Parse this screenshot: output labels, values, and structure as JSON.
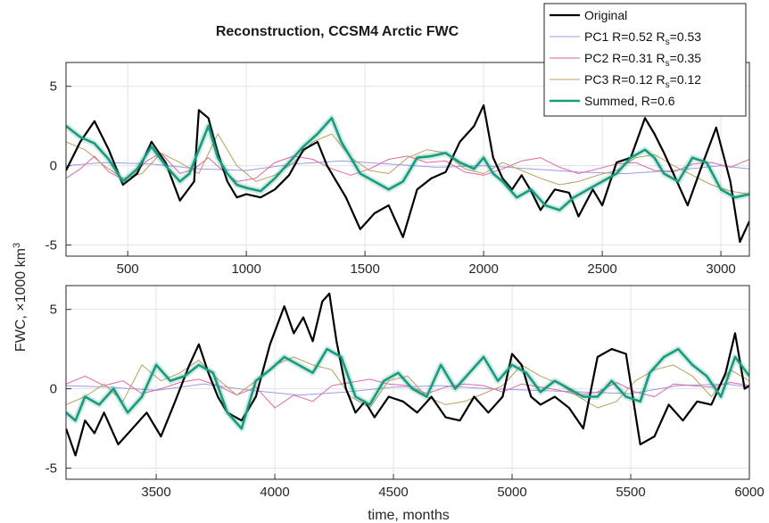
{
  "chart_data": {
    "type": "line",
    "title": "Reconstruction, CCSM4 Arctic FWC",
    "xlabel": "time, months",
    "ylabel": "FWC, ×1000 km",
    "ylabel_superscript": "3",
    "grid": true,
    "legend_placement": "top-right",
    "legend": [
      {
        "series": "original",
        "main": "Original",
        "color": "#000000"
      },
      {
        "series": "pc1",
        "main": "PC1 R=0.52 R",
        "sub": "s",
        "tail": "=0.53",
        "color": "#9b9be6"
      },
      {
        "series": "pc2",
        "main": "PC2 R=0.31 R",
        "sub": "s",
        "tail": "=0.35",
        "color": "#e066a6"
      },
      {
        "series": "pc3",
        "main": "PC3 R=0.12 R",
        "sub": "s",
        "tail": "=0.12",
        "color": "#b8a060"
      },
      {
        "series": "summed",
        "main": "Summed, R=0.6",
        "color": "#1a9a7e"
      }
    ],
    "panels": [
      {
        "name": "top",
        "xlim": [
          240,
          3120
        ],
        "ylim": [
          -5.7,
          6.5
        ],
        "xticks": [
          500,
          1000,
          1500,
          2000,
          2500,
          3000
        ],
        "yticks": [
          -5,
          0,
          5
        ],
        "series": {
          "original": {
            "x": [
              240,
              300,
              360,
              420,
              480,
              540,
              600,
              660,
              720,
              780,
              800,
              840,
              880,
              920,
              960,
              1000,
              1060,
              1120,
              1180,
              1240,
              1300,
              1340,
              1380,
              1420,
              1480,
              1540,
              1600,
              1660,
              1720,
              1780,
              1840,
              1900,
              1960,
              2000,
              2040,
              2080,
              2120,
              2160,
              2200,
              2240,
              2300,
              2360,
              2400,
              2460,
              2500,
              2560,
              2620,
              2680,
              2720,
              2760,
              2800,
              2860,
              2920,
              2980,
              3040,
              3080,
              3120
            ],
            "y": [
              -0.3,
              1.5,
              2.8,
              1.0,
              -1.2,
              -0.5,
              1.5,
              0.2,
              -2.2,
              -1.0,
              3.5,
              3.0,
              0.8,
              -1.0,
              -2.0,
              -1.8,
              -2.0,
              -1.5,
              -0.6,
              1.0,
              1.5,
              0.0,
              -1.0,
              -2.0,
              -4.0,
              -3.0,
              -2.5,
              -4.5,
              -1.5,
              -0.8,
              -0.4,
              1.5,
              2.5,
              3.8,
              0.5,
              -0.8,
              -1.5,
              -0.6,
              -1.6,
              -2.8,
              -1.5,
              -1.7,
              -3.2,
              -1.5,
              -2.5,
              0.2,
              0.5,
              3.0,
              2.0,
              0.8,
              -0.5,
              -2.5,
              0.0,
              2.4,
              -1.0,
              -4.8,
              -3.5
            ]
          },
          "pc1": {
            "x": [
              240,
              400,
              600,
              800,
              1000,
              1200,
              1400,
              1600,
              1800,
              2000,
              2200,
              2400,
              2600,
              2800,
              3000,
              3120
            ],
            "y": [
              0.0,
              0.2,
              0.1,
              -0.2,
              -0.3,
              0.1,
              0.3,
              0.1,
              -0.1,
              0.0,
              -0.2,
              -0.4,
              -0.5,
              -0.3,
              0.0,
              -0.2
            ]
          },
          "pc2": {
            "x": [
              240,
              300,
              360,
              420,
              500,
              580,
              640,
              720,
              780,
              840,
              900,
              960,
              1040,
              1120,
              1200,
              1280,
              1360,
              1440,
              1520,
              1600,
              1680,
              1760,
              1840,
              1920,
              2000,
              2080,
              2160,
              2240,
              2320,
              2400,
              2480,
              2560,
              2640,
              2720,
              2800,
              2880,
              2960,
              3040,
              3120
            ],
            "y": [
              -0.8,
              -0.2,
              0.6,
              -0.4,
              -1.0,
              0.3,
              0.8,
              -0.5,
              -0.2,
              0.5,
              -0.3,
              -1.0,
              -0.8,
              0.2,
              0.6,
              0.4,
              -0.2,
              -0.6,
              -0.2,
              0.4,
              0.6,
              0.2,
              0.3,
              -0.4,
              -0.6,
              -0.2,
              0.3,
              0.5,
              -0.1,
              -0.5,
              -0.2,
              0.1,
              0.2,
              -0.3,
              -0.4,
              0.1,
              0.2,
              -0.1,
              0.4
            ]
          },
          "pc3": {
            "x": [
              240,
              320,
              400,
              480,
              560,
              640,
              720,
              800,
              880,
              960,
              1040,
              1120,
              1200,
              1280,
              1360,
              1440,
              1520,
              1600,
              1680,
              1760,
              1840,
              1920,
              2000,
              2080,
              2160,
              2240,
              2320,
              2400,
              2480,
              2560,
              2640,
              2720,
              2800,
              2880,
              2960,
              3040,
              3120
            ],
            "y": [
              1.5,
              1.0,
              0.0,
              -0.8,
              -0.5,
              0.8,
              0.2,
              -0.5,
              2.0,
              0.0,
              -1.0,
              -0.6,
              0.2,
              1.5,
              2.0,
              0.5,
              -0.3,
              -0.5,
              0.5,
              1.0,
              0.8,
              -0.2,
              -0.5,
              0.2,
              -0.3,
              -0.8,
              -1.2,
              -1.0,
              -0.6,
              -0.3,
              0.5,
              0.7,
              0.0,
              -0.6,
              -1.2,
              -1.6,
              -1.8
            ]
          },
          "summed": {
            "x": [
              240,
              300,
              360,
              420,
              480,
              540,
              600,
              660,
              720,
              760,
              800,
              840,
              880,
              920,
              960,
              1000,
              1060,
              1120,
              1180,
              1240,
              1300,
              1360,
              1400,
              1440,
              1480,
              1540,
              1600,
              1660,
              1720,
              1780,
              1840,
              1900,
              1960,
              2000,
              2040,
              2080,
              2140,
              2200,
              2260,
              2320,
              2380,
              2440,
              2500,
              2560,
              2620,
              2680,
              2720,
              2760,
              2820,
              2880,
              2940,
              3000,
              3060,
              3120
            ],
            "y": [
              2.5,
              1.8,
              1.4,
              0.4,
              -1.0,
              -0.2,
              1.2,
              0.0,
              -1.0,
              -0.5,
              1.0,
              2.5,
              0.5,
              -0.5,
              -1.2,
              -1.4,
              -1.6,
              -0.8,
              0.2,
              1.2,
              2.0,
              3.0,
              1.5,
              0.5,
              -0.5,
              -1.0,
              -1.5,
              -1.0,
              0.5,
              0.6,
              0.8,
              0.2,
              -0.2,
              0.5,
              -0.5,
              -1.0,
              -2.0,
              -1.5,
              -2.5,
              -2.8,
              -2.0,
              -1.5,
              -1.0,
              -0.5,
              0.5,
              1.0,
              0.5,
              -0.5,
              -1.0,
              0.5,
              0.2,
              -1.5,
              -2.0,
              -1.8
            ]
          }
        }
      },
      {
        "name": "bottom",
        "xlim": [
          3120,
          6000
        ],
        "ylim": [
          -5.7,
          6.5
        ],
        "xticks": [
          3500,
          4000,
          4500,
          5000,
          5500,
          6000
        ],
        "yticks": [
          -5,
          0,
          5
        ],
        "series": {
          "original": {
            "x": [
              3120,
              3160,
              3200,
              3240,
              3280,
              3340,
              3400,
              3460,
              3520,
              3580,
              3640,
              3680,
              3720,
              3760,
              3800,
              3860,
              3920,
              3980,
              4040,
              4080,
              4120,
              4160,
              4200,
              4230,
              4260,
              4300,
              4340,
              4380,
              4420,
              4480,
              4540,
              4600,
              4660,
              4720,
              4780,
              4840,
              4900,
              4960,
              5000,
              5040,
              5080,
              5120,
              5180,
              5240,
              5300,
              5360,
              5420,
              5480,
              5540,
              5600,
              5660,
              5720,
              5780,
              5840,
              5900,
              5940,
              5980,
              6000
            ],
            "y": [
              -2.5,
              -4.2,
              -2.0,
              -2.8,
              -1.5,
              -3.5,
              -2.5,
              -1.5,
              -3.0,
              -0.8,
              1.5,
              2.8,
              1.0,
              -0.5,
              -1.5,
              -2.0,
              -0.5,
              2.8,
              5.2,
              3.5,
              4.5,
              3.0,
              5.5,
              6.0,
              3.0,
              0.0,
              -1.5,
              -0.8,
              -1.8,
              -0.5,
              -0.8,
              -1.5,
              -0.5,
              -1.8,
              -2.0,
              -0.5,
              -1.5,
              -0.5,
              2.2,
              1.5,
              -0.5,
              -1.0,
              -0.5,
              -1.2,
              -2.5,
              2.0,
              2.5,
              2.2,
              -3.5,
              -3.0,
              -1.0,
              -2.0,
              -0.8,
              -1.0,
              1.0,
              3.5,
              0.0,
              0.2
            ]
          },
          "pc1": {
            "x": [
              3120,
              3300,
              3500,
              3700,
              3900,
              4100,
              4300,
              4500,
              4700,
              4900,
              5100,
              5300,
              5500,
              5700,
              5900,
              6000
            ],
            "y": [
              0.2,
              0.1,
              -0.1,
              0.3,
              -0.1,
              -0.4,
              -0.2,
              0.1,
              0.2,
              0.0,
              -0.1,
              -0.2,
              -0.3,
              0.2,
              0.3,
              0.1
            ]
          },
          "pc2": {
            "x": [
              3120,
              3200,
              3280,
              3360,
              3440,
              3520,
              3600,
              3680,
              3760,
              3840,
              3920,
              4000,
              4080,
              4160,
              4240,
              4320,
              4400,
              4480,
              4560,
              4640,
              4720,
              4800,
              4880,
              4960,
              5040,
              5120,
              5200,
              5280,
              5360,
              5440,
              5520,
              5600,
              5680,
              5760,
              5840,
              5920,
              6000
            ],
            "y": [
              0.3,
              0.8,
              0.2,
              0.5,
              -0.3,
              0.0,
              0.4,
              0.6,
              0.2,
              -0.4,
              0.1,
              -1.2,
              -0.4,
              -0.8,
              0.2,
              0.4,
              0.6,
              0.3,
              0.2,
              -0.3,
              0.1,
              0.3,
              0.2,
              -0.2,
              0.3,
              0.1,
              -0.1,
              -0.4,
              -0.2,
              0.4,
              -0.2,
              -0.5,
              0.3,
              0.2,
              0.1,
              0.4,
              0.2
            ]
          },
          "pc3": {
            "x": [
              3120,
              3200,
              3280,
              3360,
              3440,
              3520,
              3600,
              3680,
              3760,
              3840,
              3920,
              4000,
              4080,
              4160,
              4240,
              4320,
              4400,
              4480,
              4560,
              4640,
              4720,
              4800,
              4880,
              4960,
              5040,
              5120,
              5200,
              5280,
              5360,
              5440,
              5520,
              5600,
              5680,
              5760,
              5840,
              5920,
              6000
            ],
            "y": [
              -1.0,
              -0.5,
              0.3,
              -0.8,
              1.5,
              0.5,
              1.0,
              1.8,
              0.6,
              -0.4,
              0.5,
              1.5,
              2.0,
              1.5,
              1.2,
              -0.5,
              -1.2,
              0.5,
              0.8,
              -0.5,
              -1.0,
              -0.8,
              -0.3,
              0.2,
              1.5,
              0.8,
              0.3,
              -0.5,
              -1.2,
              -0.8,
              0.5,
              1.2,
              1.5,
              0.8,
              -0.5,
              1.2,
              0.5
            ]
          },
          "summed": {
            "x": [
              3120,
              3160,
              3200,
              3260,
              3320,
              3380,
              3440,
              3500,
              3560,
              3620,
              3680,
              3740,
              3800,
              3860,
              3920,
              3980,
              4040,
              4100,
              4160,
              4220,
              4280,
              4340,
              4400,
              4460,
              4520,
              4580,
              4640,
              4700,
              4760,
              4820,
              4880,
              4940,
              5000,
              5060,
              5120,
              5180,
              5240,
              5300,
              5360,
              5420,
              5480,
              5540,
              5580,
              5640,
              5700,
              5760,
              5820,
              5880,
              5940,
              6000
            ],
            "y": [
              -1.5,
              -2.0,
              -0.5,
              -1.0,
              0.0,
              -1.5,
              -0.5,
              1.5,
              0.5,
              0.8,
              1.5,
              1.0,
              -1.5,
              -2.5,
              0.5,
              1.2,
              2.0,
              1.5,
              1.0,
              2.5,
              2.0,
              -0.5,
              -1.0,
              0.5,
              1.0,
              0.0,
              -0.5,
              1.5,
              0.0,
              1.0,
              2.0,
              0.5,
              1.5,
              1.0,
              -0.2,
              0.5,
              0.0,
              -0.5,
              -0.5,
              0.5,
              -0.5,
              -0.8,
              1.0,
              2.0,
              2.5,
              1.5,
              0.8,
              -0.5,
              2.0,
              0.8
            ]
          }
        }
      }
    ]
  }
}
